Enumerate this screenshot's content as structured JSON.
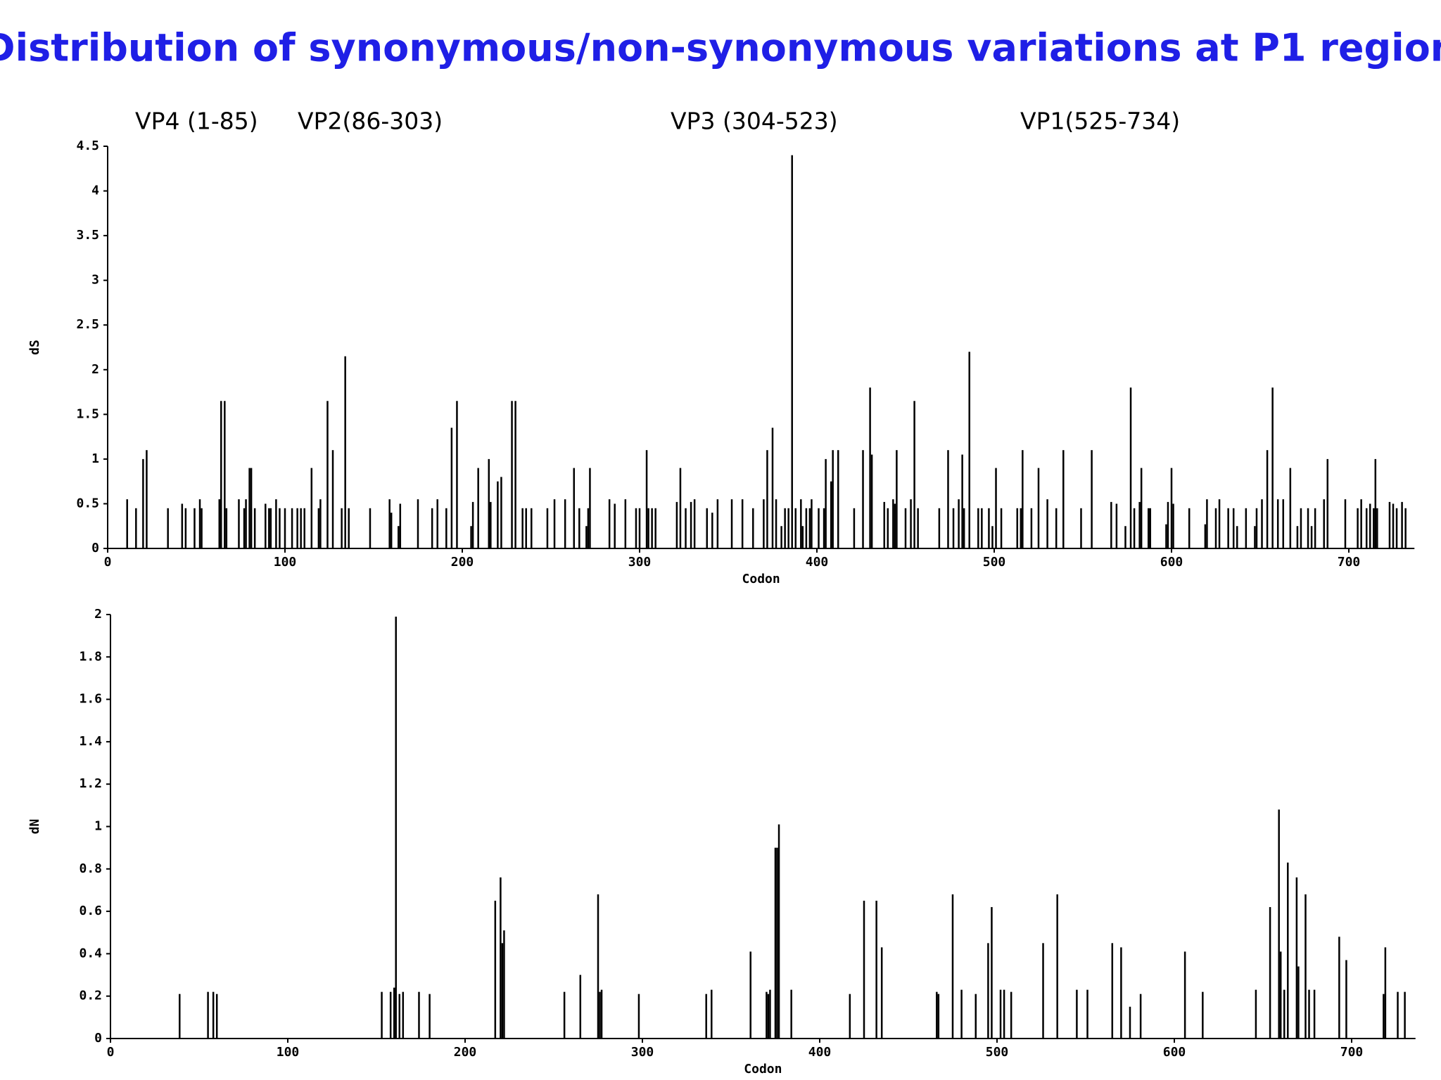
{
  "chart_data": [
    {
      "type": "bar",
      "title": "Distribution of synonymous/non-synonymous  variations at P1 region",
      "annotations": [
        "VP4 (1-85)",
        "VP2(86-303)",
        "VP3 (304-523)",
        "VP1(525-734)"
      ],
      "xlabel": "Codon",
      "ylabel": "dS",
      "color": "#000000",
      "xlim": [
        0,
        737
      ],
      "xticks": [
        0,
        100,
        200,
        300,
        400,
        500,
        600,
        700
      ],
      "ylim": [
        0,
        4.5
      ],
      "yticks": [
        0,
        0.5,
        1,
        1.5,
        2,
        2.5,
        3,
        3.5,
        4,
        4.5
      ],
      "x": [
        11,
        16,
        20,
        22,
        34,
        42,
        44,
        49,
        52,
        53,
        63,
        64,
        66,
        67,
        74,
        77,
        78,
        80,
        81,
        83,
        89,
        91,
        92,
        95,
        97,
        100,
        104,
        107,
        109,
        111,
        115,
        119,
        120,
        124,
        127,
        132,
        134,
        136,
        148,
        159,
        160,
        164,
        165,
        175,
        183,
        186,
        191,
        194,
        197,
        205,
        206,
        209,
        215,
        216,
        220,
        222,
        228,
        230,
        234,
        236,
        239,
        248,
        252,
        258,
        263,
        266,
        270,
        271,
        272,
        283,
        286,
        292,
        298,
        300,
        304,
        305,
        307,
        309,
        321,
        323,
        326,
        329,
        331,
        338,
        341,
        344,
        352,
        358,
        364,
        370,
        372,
        375,
        377,
        380,
        382,
        384,
        386,
        388,
        391,
        392,
        394,
        396,
        397,
        401,
        404,
        405,
        408,
        409,
        412,
        421,
        426,
        430,
        431,
        438,
        440,
        443,
        444,
        445,
        450,
        453,
        455,
        457,
        469,
        474,
        477,
        480,
        482,
        483,
        486,
        491,
        493,
        497,
        499,
        501,
        504,
        513,
        515,
        516,
        521,
        525,
        530,
        535,
        539,
        549,
        555,
        566,
        569,
        574,
        577,
        579,
        582,
        583,
        587,
        588,
        597,
        598,
        600,
        601,
        610,
        619,
        620,
        625,
        627,
        632,
        635,
        637,
        642,
        647,
        648,
        651,
        654,
        657,
        660,
        663,
        667,
        671,
        673,
        677,
        679,
        681,
        686,
        688,
        698,
        705,
        707,
        710,
        712,
        714,
        715,
        716,
        723,
        725,
        727,
        730,
        732
      ],
      "values": [
        0.55,
        0.45,
        1.0,
        1.1,
        0.45,
        0.5,
        0.45,
        0.45,
        0.55,
        0.45,
        0.55,
        1.65,
        1.65,
        0.45,
        0.55,
        0.45,
        0.55,
        0.9,
        0.9,
        0.45,
        0.5,
        0.45,
        0.45,
        0.55,
        0.45,
        0.45,
        0.45,
        0.45,
        0.45,
        0.45,
        0.9,
        0.45,
        0.55,
        1.65,
        1.1,
        0.45,
        2.15,
        0.45,
        0.45,
        0.55,
        0.4,
        0.25,
        0.5,
        0.55,
        0.45,
        0.55,
        0.45,
        1.35,
        1.65,
        0.25,
        0.52,
        0.9,
        1.0,
        0.52,
        0.75,
        0.8,
        1.65,
        1.65,
        0.45,
        0.45,
        0.45,
        0.45,
        0.55,
        0.55,
        0.9,
        0.45,
        0.25,
        0.45,
        0.9,
        0.55,
        0.5,
        0.55,
        0.45,
        0.45,
        1.1,
        0.45,
        0.45,
        0.45,
        0.52,
        0.9,
        0.45,
        0.52,
        0.55,
        0.45,
        0.4,
        0.55,
        0.55,
        0.55,
        0.45,
        0.55,
        1.1,
        1.35,
        0.55,
        0.25,
        0.45,
        0.45,
        4.4,
        0.45,
        0.55,
        0.25,
        0.45,
        0.45,
        0.55,
        0.45,
        0.45,
        1.0,
        0.75,
        1.1,
        1.1,
        0.45,
        1.1,
        1.8,
        1.05,
        0.52,
        0.45,
        0.55,
        0.5,
        1.1,
        0.45,
        0.55,
        1.65,
        0.45,
        0.45,
        1.1,
        0.45,
        0.55,
        1.05,
        0.45,
        2.2,
        0.45,
        0.45,
        0.45,
        0.25,
        0.9,
        0.45,
        0.45,
        0.45,
        1.1,
        0.45,
        0.9,
        0.55,
        0.45,
        1.1,
        0.45,
        1.1,
        0.52,
        0.5,
        0.25,
        1.8,
        0.45,
        0.52,
        0.9,
        0.45,
        0.45,
        0.27,
        0.52,
        0.9,
        0.5,
        0.45,
        0.27,
        0.55,
        0.45,
        0.55,
        0.45,
        0.45,
        0.25,
        0.45,
        0.25,
        0.45,
        0.55,
        1.1,
        1.8,
        0.55,
        0.55,
        0.9,
        0.25,
        0.45,
        0.45,
        0.25,
        0.45,
        0.55,
        1.0,
        0.55,
        0.45,
        0.55,
        0.45,
        0.5,
        0.45,
        1.0,
        0.45,
        0.52,
        0.5,
        0.45,
        0.52,
        0.45
      ]
    },
    {
      "type": "bar",
      "xlabel": "Codon",
      "ylabel": "dN",
      "color": "#000000",
      "xlim": [
        0,
        736
      ],
      "xticks": [
        0,
        100,
        200,
        300,
        400,
        500,
        600,
        700
      ],
      "ylim": [
        0,
        2
      ],
      "yticks": [
        0,
        0.2,
        0.4,
        0.6,
        0.8,
        1,
        1.2,
        1.4,
        1.6,
        1.8,
        2
      ],
      "x": [
        39,
        55,
        58,
        60,
        153,
        158,
        160,
        161,
        163,
        165,
        174,
        180,
        217,
        220,
        221,
        222,
        256,
        265,
        275,
        276,
        277,
        298,
        336,
        339,
        361,
        370,
        371,
        372,
        375,
        376,
        377,
        384,
        417,
        425,
        432,
        435,
        466,
        467,
        475,
        480,
        488,
        495,
        497,
        502,
        504,
        508,
        526,
        534,
        545,
        551,
        565,
        570,
        575,
        581,
        606,
        616,
        646,
        654,
        659,
        660,
        662,
        664,
        669,
        670,
        674,
        676,
        679,
        693,
        697,
        718,
        719,
        726,
        730
      ],
      "values": [
        0.21,
        0.22,
        0.22,
        0.21,
        0.22,
        0.22,
        0.24,
        1.99,
        0.21,
        0.22,
        0.22,
        0.21,
        0.65,
        0.76,
        0.45,
        0.51,
        0.22,
        0.3,
        0.68,
        0.22,
        0.23,
        0.21,
        0.21,
        0.23,
        0.41,
        0.22,
        0.21,
        0.23,
        0.9,
        0.9,
        1.01,
        0.23,
        0.21,
        0.65,
        0.65,
        0.43,
        0.22,
        0.21,
        0.68,
        0.23,
        0.21,
        0.45,
        0.62,
        0.23,
        0.23,
        0.22,
        0.45,
        0.68,
        0.23,
        0.23,
        0.45,
        0.43,
        0.15,
        0.21,
        0.41,
        0.22,
        0.23,
        0.62,
        1.08,
        0.41,
        0.23,
        0.83,
        0.76,
        0.34,
        0.68,
        0.23,
        0.23,
        0.48,
        0.37,
        0.21,
        0.43,
        0.22,
        0.22
      ]
    }
  ]
}
